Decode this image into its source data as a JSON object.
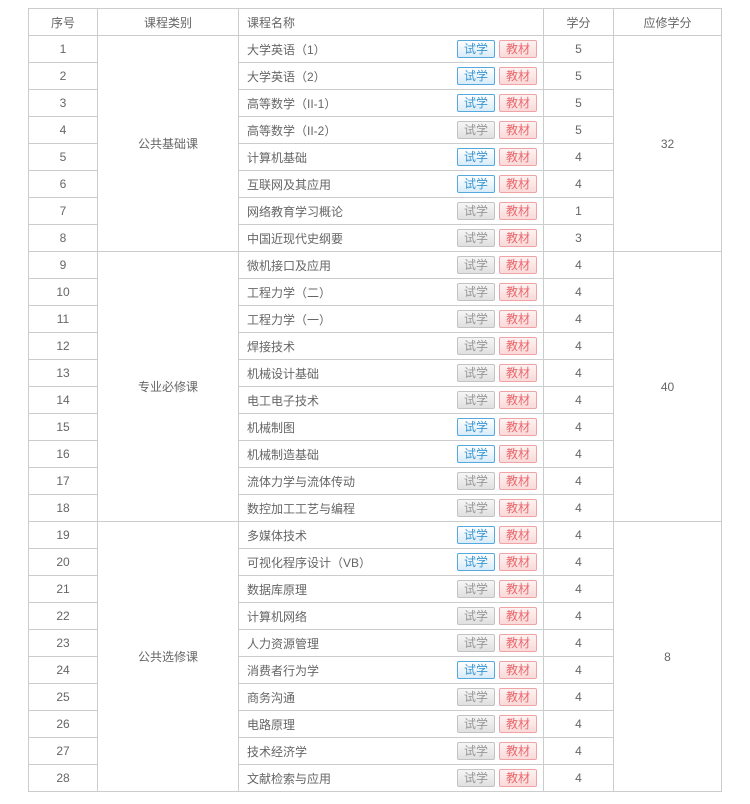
{
  "table": {
    "headers": {
      "no": "序号",
      "category": "课程类别",
      "course_name": "课程名称",
      "credit": "学分",
      "required_credit": "应修学分"
    },
    "trial_button_label": "试学",
    "material_button_label": "教材",
    "groups": [
      {
        "category": "公共基础课",
        "required_credits": "32",
        "courses": [
          {
            "no": "1",
            "name": "大学英语（1）",
            "credit": "5",
            "trial_active": true
          },
          {
            "no": "2",
            "name": "大学英语（2）",
            "credit": "5",
            "trial_active": true
          },
          {
            "no": "3",
            "name": "高等数学（II-1）",
            "credit": "5",
            "trial_active": true
          },
          {
            "no": "4",
            "name": "高等数学（II-2）",
            "credit": "5",
            "trial_active": false
          },
          {
            "no": "5",
            "name": "计算机基础",
            "credit": "4",
            "trial_active": true
          },
          {
            "no": "6",
            "name": "互联网及其应用",
            "credit": "4",
            "trial_active": true
          },
          {
            "no": "7",
            "name": "网络教育学习概论",
            "credit": "1",
            "trial_active": false
          },
          {
            "no": "8",
            "name": "中国近现代史纲要",
            "credit": "3",
            "trial_active": false
          }
        ]
      },
      {
        "category": "专业必修课",
        "required_credits": "40",
        "courses": [
          {
            "no": "9",
            "name": "微机接口及应用",
            "credit": "4",
            "trial_active": false
          },
          {
            "no": "10",
            "name": "工程力学（二）",
            "credit": "4",
            "trial_active": false
          },
          {
            "no": "11",
            "name": "工程力学（一）",
            "credit": "4",
            "trial_active": false
          },
          {
            "no": "12",
            "name": "焊接技术",
            "credit": "4",
            "trial_active": false
          },
          {
            "no": "13",
            "name": "机械设计基础",
            "credit": "4",
            "trial_active": false
          },
          {
            "no": "14",
            "name": "电工电子技术",
            "credit": "4",
            "trial_active": false
          },
          {
            "no": "15",
            "name": "机械制图",
            "credit": "4",
            "trial_active": true
          },
          {
            "no": "16",
            "name": "机械制造基础",
            "credit": "4",
            "trial_active": true
          },
          {
            "no": "17",
            "name": "流体力学与流体传动",
            "credit": "4",
            "trial_active": false
          },
          {
            "no": "18",
            "name": "数控加工工艺与编程",
            "credit": "4",
            "trial_active": false
          }
        ]
      },
      {
        "category": "公共选修课",
        "required_credits": "8",
        "courses": [
          {
            "no": "19",
            "name": "多媒体技术",
            "credit": "4",
            "trial_active": true
          },
          {
            "no": "20",
            "name": "可视化程序设计（VB）",
            "credit": "4",
            "trial_active": true
          },
          {
            "no": "21",
            "name": "数据库原理",
            "credit": "4",
            "trial_active": false
          },
          {
            "no": "22",
            "name": "计算机网络",
            "credit": "4",
            "trial_active": false
          },
          {
            "no": "23",
            "name": "人力资源管理",
            "credit": "4",
            "trial_active": false
          },
          {
            "no": "24",
            "name": "消费者行为学",
            "credit": "4",
            "trial_active": true
          },
          {
            "no": "25",
            "name": "商务沟通",
            "credit": "4",
            "trial_active": false
          },
          {
            "no": "26",
            "name": "电路原理",
            "credit": "4",
            "trial_active": false
          },
          {
            "no": "27",
            "name": "技术经济学",
            "credit": "4",
            "trial_active": false
          },
          {
            "no": "28",
            "name": "文献检索与应用",
            "credit": "4",
            "trial_active": false
          }
        ]
      }
    ]
  },
  "colors": {
    "table_border": "#cccccc",
    "text": "#666666",
    "trial_active_border": "#55a9dd",
    "trial_active_text": "#3a95d2",
    "trial_inactive_border": "#c3c3c3",
    "trial_inactive_text": "#979797",
    "material_border": "#efa3a3",
    "material_text": "#e9686b"
  }
}
